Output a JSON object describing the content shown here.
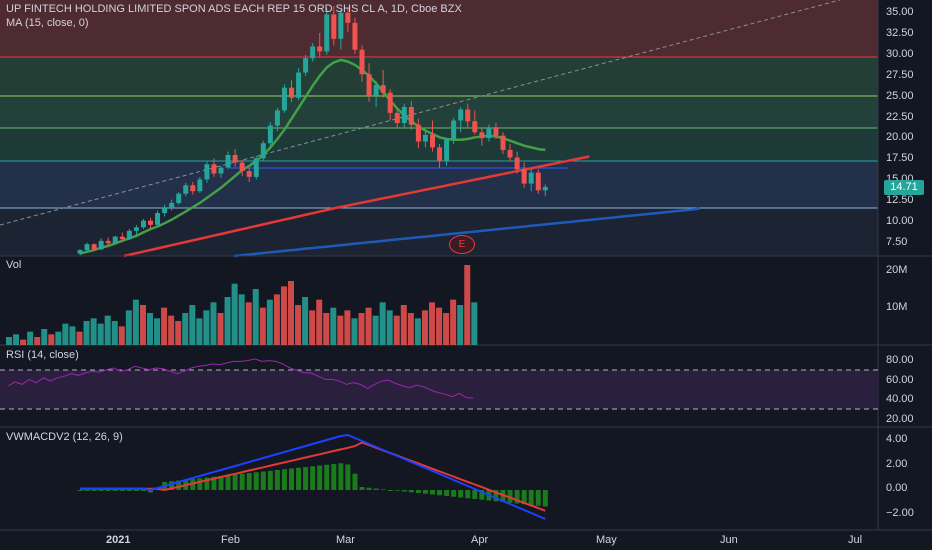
{
  "header": {
    "title": "UP FINTECH HOLDING LIMITED SPON ADS EACH REP 15 ORD SHS CL A, 1D, Cboe BZX",
    "ma_label": "MA (15, close, 0)"
  },
  "panes": {
    "vol_label": "Vol",
    "rsi_label": "RSI (14, close)",
    "macd_label": "VWMACDV2 (12, 26, 9)"
  },
  "price_axis": [
    "35.00",
    "32.50",
    "30.00",
    "27.50",
    "25.00",
    "22.50",
    "20.00",
    "17.50",
    "15.00",
    "12.50",
    "10.00",
    "7.50"
  ],
  "vol_axis": [
    "20M",
    "10M"
  ],
  "rsi_axis": [
    "80.00",
    "60.00",
    "40.00",
    "20.00"
  ],
  "macd_axis": [
    "4.00",
    "2.00",
    "0.00",
    "−2.00"
  ],
  "price_tag": "14.71",
  "earnings_marker": "E",
  "time_axis": [
    {
      "label": "2021",
      "bold": true
    },
    {
      "label": "Feb",
      "bold": false
    },
    {
      "label": "Mar",
      "bold": false
    },
    {
      "label": "Apr",
      "bold": false
    },
    {
      "label": "May",
      "bold": false
    },
    {
      "label": "Jun",
      "bold": false
    },
    {
      "label": "Jul",
      "bold": false
    }
  ],
  "colors": {
    "up": "#26a69a",
    "down": "#ef5350",
    "ma15": "#43a047",
    "ma50": "#e53935",
    "ma200": "#1e5bb8",
    "rsi": "#9c27b0",
    "macd": "#1e40ff",
    "signal": "#e53935",
    "hist_pos": "#1b7a1b",
    "hist_neg": "#1b7a1b"
  },
  "chart_data": {
    "type": "candlestick",
    "price_range": [
      6.5,
      36.2
    ],
    "candles": [
      [
        6.8,
        7.3,
        6.6,
        7.2
      ],
      [
        7.2,
        8.1,
        7.0,
        7.9
      ],
      [
        7.9,
        8.0,
        7.1,
        7.3
      ],
      [
        7.3,
        8.6,
        7.2,
        8.3
      ],
      [
        8.3,
        8.7,
        7.8,
        8.0
      ],
      [
        8.0,
        8.9,
        7.9,
        8.8
      ],
      [
        8.8,
        9.3,
        8.2,
        8.5
      ],
      [
        8.5,
        9.7,
        8.4,
        9.5
      ],
      [
        9.5,
        10.2,
        9.0,
        9.9
      ],
      [
        9.9,
        10.9,
        9.7,
        10.7
      ],
      [
        10.7,
        11.0,
        9.8,
        10.2
      ],
      [
        10.2,
        11.9,
        10.1,
        11.6
      ],
      [
        11.6,
        12.6,
        11.2,
        12.3
      ],
      [
        12.3,
        13.2,
        11.9,
        12.8
      ],
      [
        12.8,
        14.1,
        12.6,
        13.9
      ],
      [
        13.9,
        15.2,
        13.6,
        14.9
      ],
      [
        14.9,
        15.3,
        13.8,
        14.2
      ],
      [
        14.2,
        15.9,
        14.0,
        15.6
      ],
      [
        15.6,
        17.8,
        15.2,
        17.4
      ],
      [
        17.4,
        18.1,
        15.9,
        16.3
      ],
      [
        16.3,
        17.2,
        15.8,
        17.0
      ],
      [
        17.0,
        18.9,
        16.8,
        18.5
      ],
      [
        18.5,
        19.2,
        17.1,
        17.6
      ],
      [
        17.6,
        17.9,
        16.0,
        16.6
      ],
      [
        16.6,
        17.0,
        15.3,
        15.9
      ],
      [
        15.9,
        18.4,
        15.6,
        18.1
      ],
      [
        18.1,
        20.2,
        17.8,
        19.9
      ],
      [
        19.9,
        22.4,
        19.5,
        22.0
      ],
      [
        22.0,
        24.1,
        21.3,
        23.8
      ],
      [
        23.8,
        26.9,
        23.5,
        26.5
      ],
      [
        26.5,
        27.4,
        24.8,
        25.3
      ],
      [
        25.3,
        28.8,
        25.0,
        28.3
      ],
      [
        28.3,
        30.4,
        27.9,
        30.0
      ],
      [
        30.0,
        31.8,
        29.6,
        31.4
      ],
      [
        31.4,
        33.0,
        30.1,
        30.8
      ],
      [
        30.8,
        36.0,
        30.4,
        35.2
      ],
      [
        35.2,
        36.2,
        31.5,
        32.3
      ],
      [
        32.3,
        35.8,
        31.0,
        35.4
      ],
      [
        35.4,
        35.9,
        33.1,
        34.2
      ],
      [
        34.2,
        34.8,
        30.5,
        31.0
      ],
      [
        31.0,
        31.5,
        27.2,
        28.1
      ],
      [
        28.1,
        29.4,
        24.8,
        25.6
      ],
      [
        25.6,
        27.3,
        24.2,
        26.8
      ],
      [
        26.8,
        28.6,
        25.3,
        25.9
      ],
      [
        25.9,
        26.3,
        22.6,
        23.5
      ],
      [
        23.5,
        24.1,
        21.6,
        22.3
      ],
      [
        22.3,
        24.6,
        21.8,
        24.2
      ],
      [
        24.2,
        24.9,
        21.5,
        22.1
      ],
      [
        22.1,
        22.8,
        19.3,
        20.1
      ],
      [
        20.1,
        21.4,
        19.4,
        20.9
      ],
      [
        20.9,
        22.6,
        18.9,
        19.4
      ],
      [
        19.4,
        19.8,
        16.9,
        17.8
      ],
      [
        17.8,
        20.5,
        17.2,
        20.3
      ],
      [
        20.3,
        22.9,
        19.8,
        22.6
      ],
      [
        22.6,
        24.2,
        21.2,
        23.9
      ],
      [
        23.9,
        24.6,
        21.8,
        22.5
      ],
      [
        22.5,
        23.8,
        20.9,
        21.2
      ],
      [
        21.2,
        21.8,
        19.6,
        20.5
      ],
      [
        20.5,
        22.1,
        20.1,
        21.8
      ],
      [
        21.8,
        22.3,
        20.4,
        20.8
      ],
      [
        20.8,
        21.2,
        18.6,
        19.1
      ],
      [
        19.1,
        19.8,
        17.8,
        18.2
      ],
      [
        18.2,
        18.9,
        16.3,
        16.8
      ],
      [
        16.8,
        17.6,
        14.6,
        15.1
      ],
      [
        15.1,
        16.9,
        14.2,
        16.4
      ],
      [
        16.4,
        16.8,
        13.9,
        14.3
      ],
      [
        14.3,
        15.0,
        13.6,
        14.71
      ]
    ],
    "volume_millions": [
      3,
      4,
      2,
      5,
      3,
      6,
      4,
      5,
      8,
      7,
      5,
      9,
      10,
      8,
      11,
      9,
      7,
      13,
      17,
      15,
      12,
      10,
      14,
      11,
      9,
      12,
      15,
      10,
      13,
      16,
      12,
      18,
      23,
      19,
      16,
      21,
      14,
      17,
      19,
      22,
      24,
      15,
      18,
      13,
      17,
      12,
      14,
      11,
      13,
      10,
      12,
      14,
      11,
      16,
      13,
      11,
      15,
      12,
      10,
      13,
      16,
      14,
      12,
      17,
      15,
      30,
      16
    ],
    "rsi": [
      50,
      55,
      52,
      58,
      54,
      60,
      56,
      60,
      62,
      65,
      63,
      66,
      68,
      67,
      70,
      72,
      68,
      70,
      74,
      72,
      70,
      72,
      71,
      68,
      65,
      68,
      72,
      74,
      75,
      77,
      76,
      78,
      80,
      80,
      81,
      83,
      80,
      81,
      80,
      77,
      72,
      69,
      66,
      66,
      62,
      58,
      58,
      56,
      52,
      54,
      52,
      47,
      52,
      56,
      57,
      53,
      50,
      48,
      51,
      49,
      45,
      42,
      40,
      37,
      41,
      36,
      35
    ],
    "ma15_ramp": [
      6.8,
      7.0,
      7.2,
      7.5,
      7.7,
      8.0,
      8.3,
      8.6,
      8.9,
      9.3,
      9.7,
      10.0,
      10.4,
      10.8,
      11.3,
      11.8,
      12.3,
      12.8,
      13.4,
      14.0,
      14.6,
      15.3,
      16.0,
      16.7,
      17.2,
      17.8,
      18.5,
      19.4,
      20.4,
      21.5,
      22.8,
      24.1,
      25.4,
      26.7,
      27.9,
      28.9,
      29.5,
      29.8,
      29.6,
      29.2,
      28.6,
      27.9,
      27.0,
      26.0,
      25.0,
      24.0,
      23.2,
      22.5,
      21.9,
      21.4,
      21.0,
      20.6,
      20.4,
      20.3,
      20.3,
      20.4,
      20.6,
      20.7,
      20.8,
      20.7,
      20.5,
      20.2,
      19.9,
      19.6,
      19.4,
      19.2,
      19.1
    ]
  }
}
